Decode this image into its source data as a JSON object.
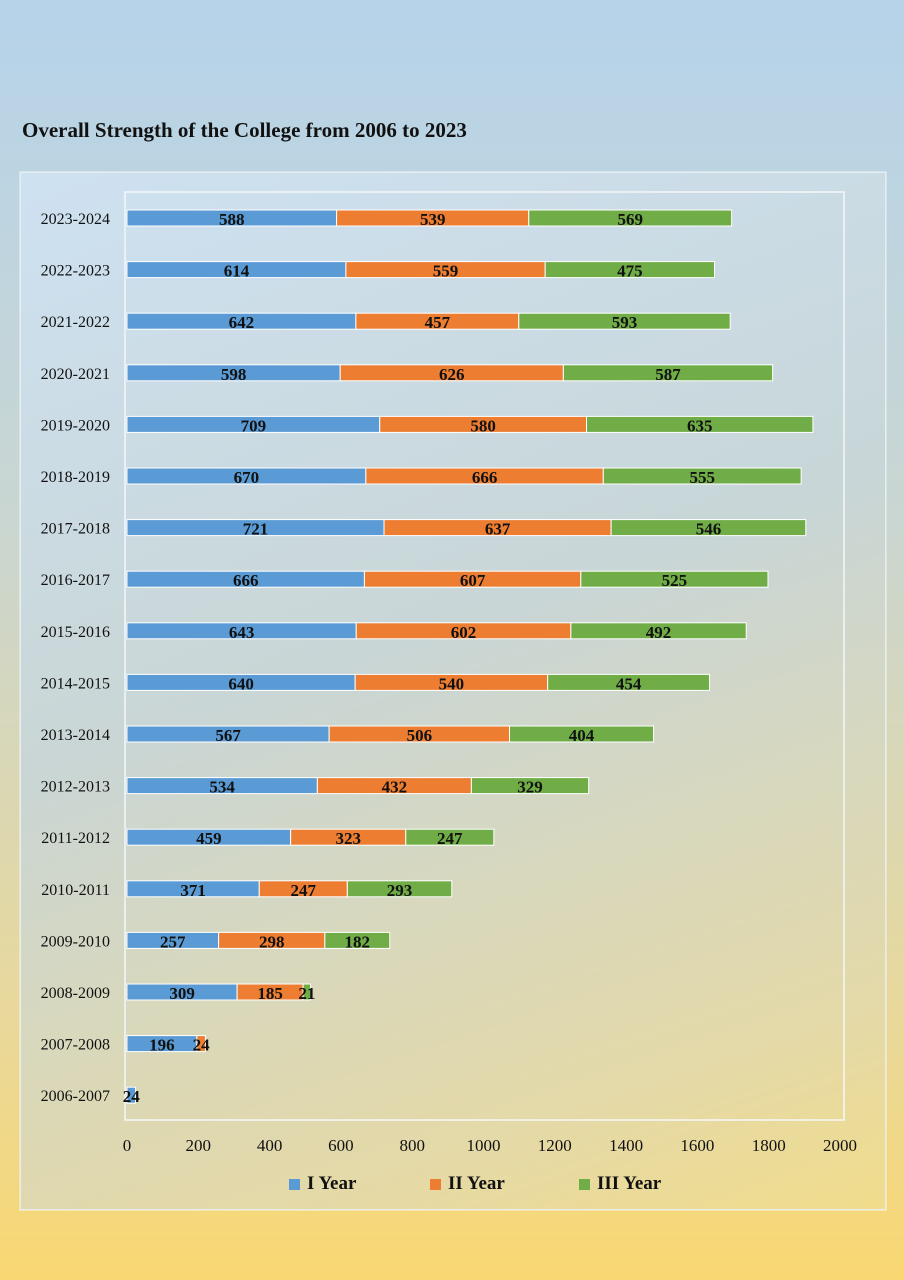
{
  "chart_data": {
    "type": "bar",
    "orientation": "horizontal",
    "stacked": true,
    "title": "Overall Strength of the College from 2006 to 2023",
    "categories": [
      "2023-2024",
      "2022-2023",
      "2021-2022",
      "2020-2021",
      "2019-2020",
      "2018-2019",
      "2017-2018",
      "2016-2017",
      "2015-2016",
      "2014-2015",
      "2013-2014",
      "2012-2013",
      "2011-2012",
      "2010-2011",
      "2009-2010",
      "2008-2009",
      "2007-2008",
      "2006-2007"
    ],
    "series": [
      {
        "name": "I Year",
        "color": "#5b9bd5",
        "values": [
          588,
          614,
          642,
          598,
          709,
          670,
          721,
          666,
          643,
          640,
          567,
          534,
          459,
          371,
          257,
          309,
          196,
          24
        ]
      },
      {
        "name": "II Year",
        "color": "#ed7d31",
        "values": [
          539,
          559,
          457,
          626,
          580,
          666,
          637,
          607,
          602,
          540,
          506,
          432,
          323,
          247,
          298,
          185,
          24,
          0
        ]
      },
      {
        "name": "III Year",
        "color": "#70ad47",
        "values": [
          569,
          475,
          593,
          587,
          635,
          555,
          546,
          525,
          492,
          454,
          404,
          329,
          247,
          293,
          182,
          21,
          0,
          0
        ]
      }
    ],
    "xlim": [
      0,
      2000
    ],
    "xticks": [
      0,
      200,
      400,
      600,
      800,
      1000,
      1200,
      1400,
      1600,
      1800,
      2000
    ],
    "grid": false,
    "legend_position": "bottom"
  }
}
